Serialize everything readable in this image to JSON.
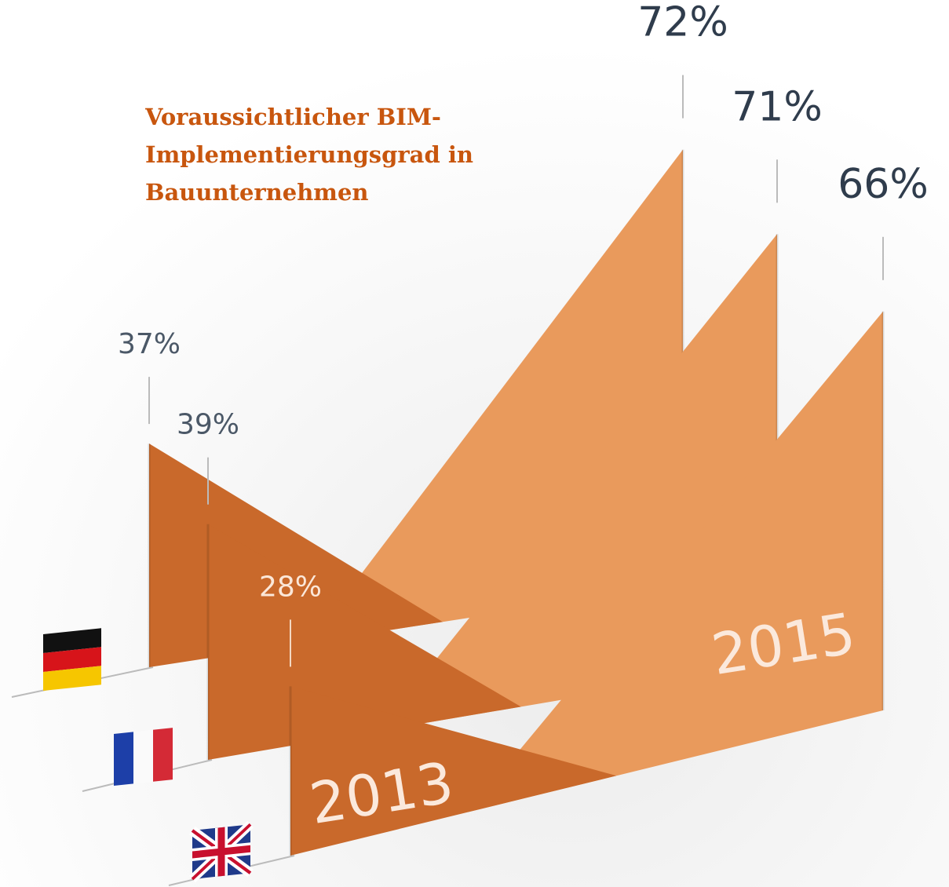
{
  "chart_data": {
    "type": "paper-triangles",
    "title": "Voraussichtlicher BIM-Implementierungsgrad in Bauunternehmen",
    "categories": [
      null,
      null,
      null
    ],
    "series": [
      {
        "name": "2013",
        "color": "#c9692b",
        "values": [
          37,
          39,
          28
        ],
        "value_labels": [
          "37%",
          "39%",
          "28%"
        ]
      },
      {
        "name": "2015",
        "color": "#e99a5c",
        "values": [
          72,
          71,
          66
        ],
        "value_labels": [
          "72%",
          "71%",
          "66%"
        ]
      }
    ]
  }
}
